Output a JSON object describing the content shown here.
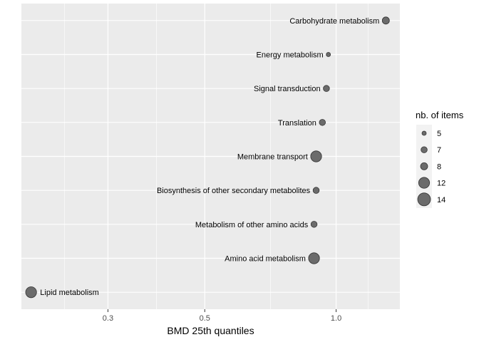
{
  "chart_data": {
    "type": "scatter",
    "xlabel": "BMD 25th quantiles",
    "ylabel": "",
    "x_scale": "log",
    "xlim": [
      0.19,
      1.4
    ],
    "x_ticks": [
      0.3,
      0.5,
      1.0
    ],
    "x_tick_labels": [
      "0.3",
      "0.5",
      "1.0"
    ],
    "grid": true,
    "legend": {
      "title": "nb. of items",
      "position": "right",
      "entries": [
        {
          "label": "5",
          "value": 5
        },
        {
          "label": "7",
          "value": 7
        },
        {
          "label": "8",
          "value": 8
        },
        {
          "label": "12",
          "value": 12
        },
        {
          "label": "14",
          "value": 14
        }
      ]
    },
    "points": [
      {
        "label": "Carbohydrate metabolism",
        "x": 1.3,
        "size": 8
      },
      {
        "label": "Energy metabolism",
        "x": 0.96,
        "size": 5
      },
      {
        "label": "Signal transduction",
        "x": 0.95,
        "size": 7
      },
      {
        "label": "Translation",
        "x": 0.93,
        "size": 7
      },
      {
        "label": "Membrane transport",
        "x": 0.9,
        "size": 12
      },
      {
        "label": "Biosynthesis of other secondary metabolites",
        "x": 0.9,
        "size": 7
      },
      {
        "label": "Metabolism of other amino acids",
        "x": 0.89,
        "size": 7
      },
      {
        "label": "Amino acid metabolism",
        "x": 0.89,
        "size": 12
      },
      {
        "label": "Lipid metabolism",
        "x": 0.2,
        "size": 12
      }
    ],
    "colors": {
      "panel": "#ebebeb",
      "grid": "#ffffff",
      "point_fill": "#6b6b6b",
      "point_stroke": "#333333"
    }
  }
}
